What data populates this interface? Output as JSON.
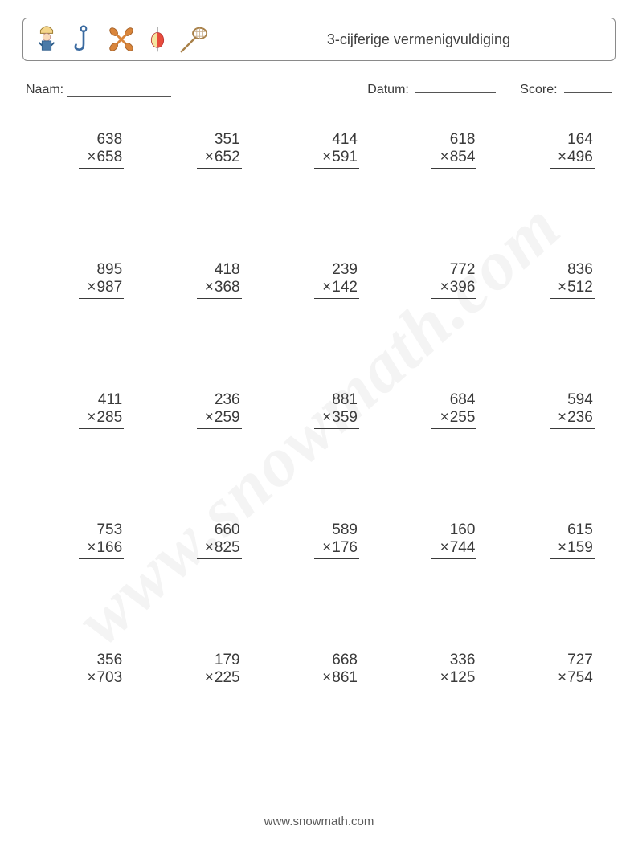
{
  "header": {
    "title": "3-cijferige vermenigvuldiging",
    "icons": [
      "fisherman-icon",
      "hook-icon",
      "paddles-icon",
      "bobber-icon",
      "net-icon"
    ]
  },
  "info": {
    "name_label": "Naam:",
    "date_label": "Datum:",
    "score_label": "Score:"
  },
  "operator": "×",
  "problems": [
    [
      {
        "a": "638",
        "b": "658"
      },
      {
        "a": "351",
        "b": "652"
      },
      {
        "a": "414",
        "b": "591"
      },
      {
        "a": "618",
        "b": "854"
      },
      {
        "a": "164",
        "b": "496"
      }
    ],
    [
      {
        "a": "895",
        "b": "987"
      },
      {
        "a": "418",
        "b": "368"
      },
      {
        "a": "239",
        "b": "142"
      },
      {
        "a": "772",
        "b": "396"
      },
      {
        "a": "836",
        "b": "512"
      }
    ],
    [
      {
        "a": "411",
        "b": "285"
      },
      {
        "a": "236",
        "b": "259"
      },
      {
        "a": "881",
        "b": "359"
      },
      {
        "a": "684",
        "b": "255"
      },
      {
        "a": "594",
        "b": "236"
      }
    ],
    [
      {
        "a": "753",
        "b": "166"
      },
      {
        "a": "660",
        "b": "825"
      },
      {
        "a": "589",
        "b": "176"
      },
      {
        "a": "160",
        "b": "744"
      },
      {
        "a": "615",
        "b": "159"
      }
    ],
    [
      {
        "a": "356",
        "b": "703"
      },
      {
        "a": "179",
        "b": "225"
      },
      {
        "a": "668",
        "b": "861"
      },
      {
        "a": "336",
        "b": "125"
      },
      {
        "a": "727",
        "b": "754"
      }
    ]
  ],
  "watermark": "www.snowmath.com",
  "footer": "www.snowmath.com",
  "colors": {
    "text": "#3a3a3a",
    "border": "#8a8a8a",
    "background": "#ffffff"
  }
}
